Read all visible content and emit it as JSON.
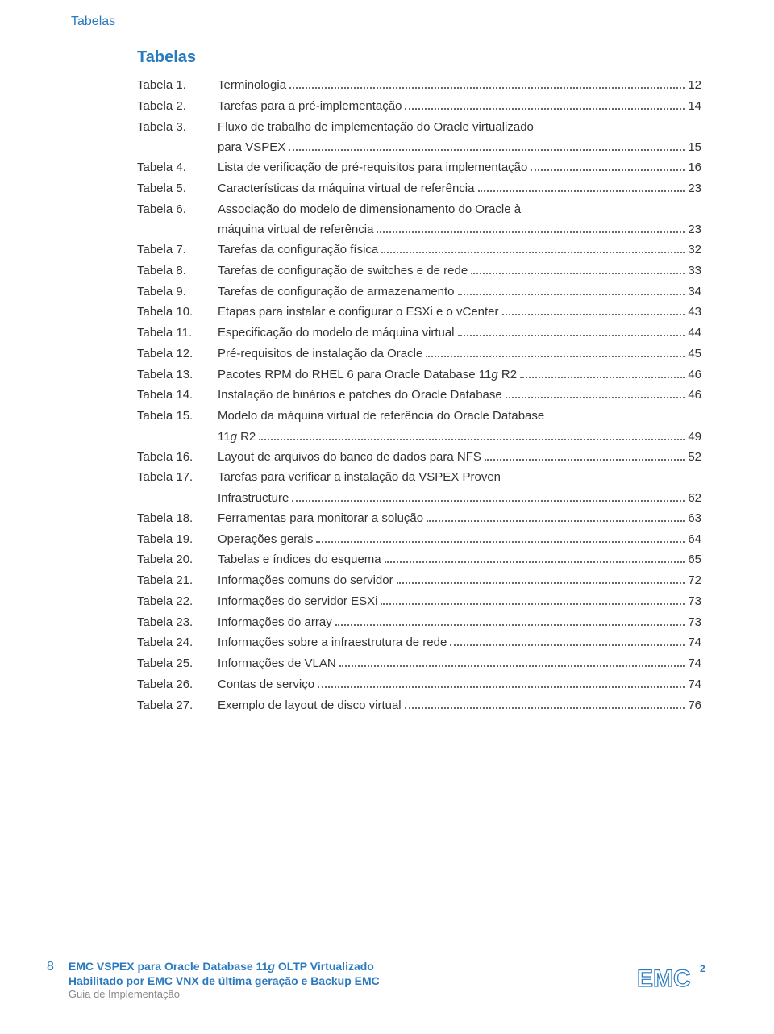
{
  "header_label": "Tabelas",
  "section_title": "Tabelas",
  "entries": [
    {
      "label": "Tabela 1.",
      "text": "Terminologia",
      "page": "12"
    },
    {
      "label": "Tabela 2.",
      "text": "Tarefas para a pré-implementação",
      "page": "14"
    },
    {
      "label": "Tabela 3.",
      "text": "Fluxo de trabalho de implementação do Oracle virtualizado",
      "text2": "para VSPEX",
      "page": "15"
    },
    {
      "label": "Tabela 4.",
      "text": "Lista de verificação de pré-requisitos para implementação",
      "page": "16"
    },
    {
      "label": "Tabela 5.",
      "text": "Características da máquina virtual de referência",
      "page": "23"
    },
    {
      "label": "Tabela 6.",
      "text": "Associação do modelo de dimensionamento do Oracle à",
      "text2": "máquina virtual de referência",
      "page": "23"
    },
    {
      "label": "Tabela 7.",
      "text": "Tarefas da configuração física",
      "page": "32"
    },
    {
      "label": "Tabela 8.",
      "text": "Tarefas de configuração de switches e de rede",
      "page": "33"
    },
    {
      "label": "Tabela 9.",
      "text": "Tarefas de configuração de armazenamento",
      "page": "34"
    },
    {
      "label": "Tabela 10.",
      "text": "Etapas para instalar e configurar o ESXi e o vCenter",
      "page": "43"
    },
    {
      "label": "Tabela 11.",
      "text": "Especificação do modelo de máquina virtual",
      "page": "44"
    },
    {
      "label": "Tabela 12.",
      "text": "Pré-requisitos de instalação da Oracle",
      "page": "45"
    },
    {
      "label": "Tabela 13.",
      "text": "Pacotes RPM do RHEL 6 para Oracle Database 11|g| R2",
      "page": "46"
    },
    {
      "label": "Tabela 14.",
      "text": "Instalação de binários e patches do Oracle Database",
      "page": "46"
    },
    {
      "label": "Tabela 15.",
      "text": "Modelo da máquina virtual de referência do Oracle Database",
      "text2": "11|g| R2",
      "page": "49"
    },
    {
      "label": "Tabela 16.",
      "text": "Layout de arquivos do banco de dados para NFS",
      "page": "52"
    },
    {
      "label": "Tabela 17.",
      "text": "Tarefas para verificar a instalação da VSPEX Proven",
      "text2": "Infrastructure",
      "page": "62"
    },
    {
      "label": "Tabela 18.",
      "text": "Ferramentas para monitorar a solução",
      "page": "63"
    },
    {
      "label": "Tabela 19.",
      "text": "Operações gerais",
      "page": "64"
    },
    {
      "label": "Tabela 20.",
      "text": "Tabelas e índices do esquema",
      "page": "65"
    },
    {
      "label": "Tabela 21.",
      "text": "Informações comuns do servidor",
      "page": "72"
    },
    {
      "label": "Tabela 22.",
      "text": "Informações do servidor ESXi",
      "page": "73"
    },
    {
      "label": "Tabela 23.",
      "text": "Informações do array",
      "page": "73"
    },
    {
      "label": "Tabela 24.",
      "text": "Informações sobre a infraestrutura de rede",
      "page": "74"
    },
    {
      "label": "Tabela 25.",
      "text": "Informações de VLAN",
      "page": "74"
    },
    {
      "label": "Tabela 26.",
      "text": "Contas de serviço",
      "page": "74"
    },
    {
      "label": "Tabela 27.",
      "text": "Exemplo de layout de disco virtual",
      "page": "76"
    }
  ],
  "footer": {
    "page_num": "8",
    "line1_a": "EMC VSPEX para Oracle Database 11",
    "line1_g": "g",
    "line1_b": " OLTP Virtualizado",
    "line2": "Habilitado por EMC VNX de última geração e Backup EMC",
    "line3": "Guia de Implementação"
  },
  "logo_text": "EMC",
  "colors": {
    "brand": "#2a7abf",
    "text": "#333333",
    "muted": "#888888"
  }
}
